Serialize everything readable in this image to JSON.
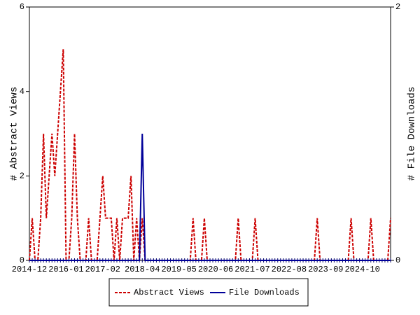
{
  "chart_data": {
    "type": "line",
    "ylabel": "# Abstract Views",
    "y2label": "# File Downloads",
    "ylim": [
      0,
      6
    ],
    "yticks": [
      0,
      2,
      4,
      6
    ],
    "y2lim": [
      0,
      2
    ],
    "y2ticks": [
      0,
      2
    ],
    "legend": "bottom",
    "categories": [
      "2014-12",
      null,
      null,
      null,
      null,
      null,
      null,
      null,
      null,
      null,
      null,
      null,
      null,
      "2016-01",
      null,
      null,
      null,
      null,
      null,
      null,
      null,
      null,
      null,
      null,
      null,
      null,
      "2017-02",
      null,
      null,
      null,
      null,
      null,
      null,
      null,
      null,
      null,
      null,
      null,
      null,
      null,
      "2018-04",
      null,
      null,
      null,
      null,
      null,
      null,
      null,
      null,
      null,
      null,
      null,
      null,
      "2019-05",
      null,
      null,
      null,
      null,
      null,
      null,
      null,
      null,
      null,
      null,
      null,
      null,
      "2020-06",
      null,
      null,
      null,
      null,
      null,
      null,
      null,
      null,
      null,
      null,
      null,
      null,
      "2021-07",
      null,
      null,
      null,
      null,
      null,
      null,
      null,
      null,
      null,
      null,
      null,
      null,
      "2022-08",
      null,
      null,
      null,
      null,
      null,
      null,
      null,
      null,
      null,
      null,
      null,
      null,
      "2023-09",
      null,
      null,
      null,
      null,
      null,
      null,
      null,
      null,
      null,
      null,
      null,
      null,
      "2024-10",
      null,
      null,
      null,
      null,
      null,
      null,
      null,
      null,
      null,
      null
    ],
    "series": [
      {
        "name": "Abstract Views",
        "color": "#cc0000",
        "dash": true,
        "values": [
          0,
          1,
          0,
          0,
          1,
          3,
          1,
          2,
          3,
          2,
          3,
          4,
          5,
          0,
          0,
          1,
          3,
          1,
          0,
          0,
          0,
          1,
          0,
          0,
          0,
          1,
          2,
          1,
          1,
          1,
          0,
          1,
          0,
          1,
          1,
          1,
          2,
          0,
          1,
          0,
          1,
          0,
          0,
          0,
          0,
          0,
          0,
          0,
          0,
          0,
          0,
          0,
          0,
          0,
          0,
          0,
          0,
          0,
          1,
          0,
          0,
          0,
          1,
          0,
          0,
          0,
          0,
          0,
          0,
          0,
          0,
          0,
          0,
          0,
          1,
          0,
          0,
          0,
          0,
          0,
          1,
          0,
          0,
          0,
          0,
          0,
          0,
          0,
          0,
          0,
          0,
          0,
          0,
          0,
          0,
          0,
          0,
          0,
          0,
          0,
          0,
          0,
          1,
          0,
          0,
          0,
          0,
          0,
          0,
          0,
          0,
          0,
          0,
          0,
          1,
          0,
          0,
          0,
          0,
          0,
          0,
          1,
          0,
          0,
          0,
          0,
          0,
          0,
          1
        ]
      },
      {
        "name": "File Downloads",
        "color": "#000099",
        "axis": "y2",
        "values": [
          0,
          0,
          0,
          0,
          0,
          0,
          0,
          0,
          0,
          0,
          0,
          0,
          0,
          0,
          0,
          0,
          0,
          0,
          0,
          0,
          0,
          0,
          0,
          0,
          0,
          0,
          0,
          0,
          0,
          0,
          0,
          0,
          0,
          0,
          0,
          0,
          0,
          0,
          0,
          0,
          1,
          0,
          0,
          0,
          0,
          0,
          0,
          0,
          0,
          0,
          0,
          0,
          0,
          0,
          0,
          0,
          0,
          0,
          0,
          0,
          0,
          0,
          0,
          0,
          0,
          0,
          0,
          0,
          0,
          0,
          0,
          0,
          0,
          0,
          0,
          0,
          0,
          0,
          0,
          0,
          0,
          0,
          0,
          0,
          0,
          0,
          0,
          0,
          0,
          0,
          0,
          0,
          0,
          0,
          0,
          0,
          0,
          0,
          0,
          0,
          0,
          0,
          0,
          0,
          0,
          0,
          0,
          0,
          0,
          0,
          0,
          0,
          0,
          0,
          0,
          0,
          0,
          0,
          0,
          0,
          0,
          0,
          0,
          0,
          0,
          0,
          0,
          0,
          0
        ]
      }
    ]
  }
}
